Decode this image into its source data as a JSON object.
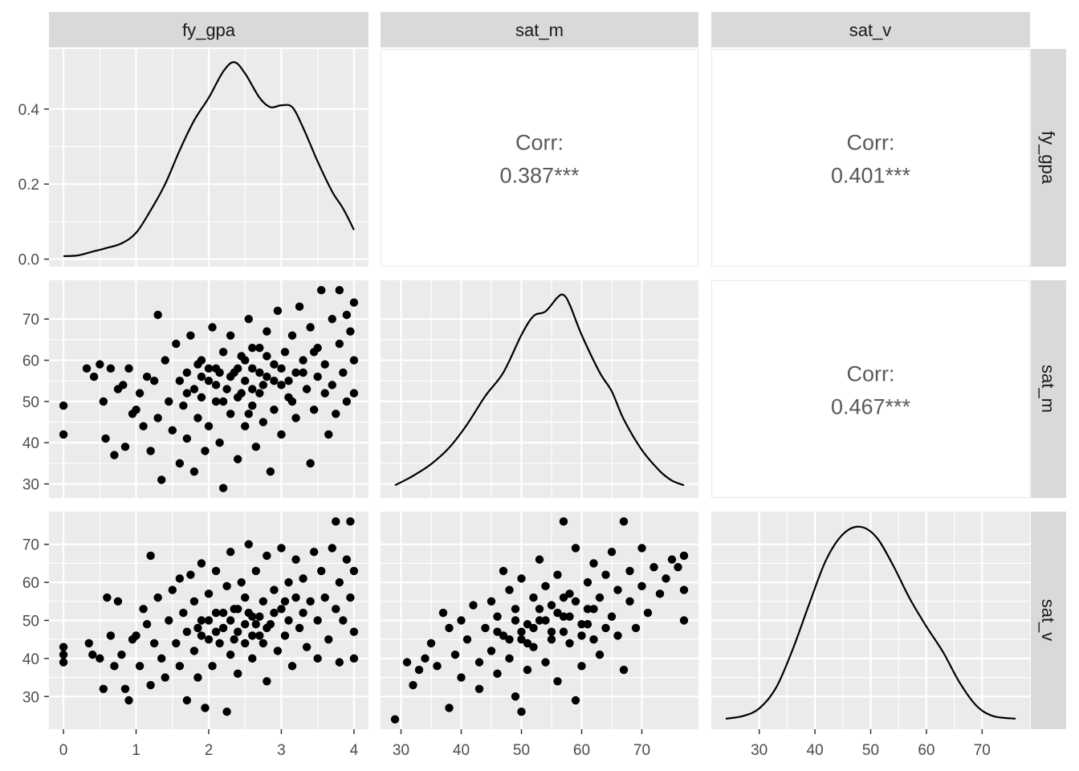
{
  "colors": {
    "panel_bg": "#ebebeb",
    "grid_major": "#ffffff",
    "strip_bg": "#d9d9d9",
    "strip_text": "#1a1a1a",
    "axis_text": "#4d4d4d",
    "corr_text": "#595959",
    "ink": "#000000"
  },
  "chart_data": {
    "type": "scatter",
    "variables": [
      "fy_gpa",
      "sat_m",
      "sat_v"
    ],
    "column_strips": [
      "fy_gpa",
      "sat_m",
      "sat_v"
    ],
    "row_strips": [
      "fy_gpa",
      "sat_m",
      "sat_v"
    ],
    "axes": {
      "fy_gpa": {
        "range": [
          -0.2,
          4.2
        ],
        "ticks": [
          0,
          1,
          2,
          3,
          4
        ],
        "labels": [
          "0",
          "1",
          "2",
          "3",
          "4"
        ]
      },
      "sat_m": {
        "range": [
          26.6,
          79.4
        ],
        "ticks": [
          30,
          40,
          50,
          60,
          70
        ],
        "labels": [
          "30",
          "40",
          "50",
          "60",
          "70"
        ]
      },
      "sat_v": {
        "range": [
          21.4,
          78.6
        ],
        "ticks": [
          30,
          40,
          50,
          60,
          70
        ],
        "labels": [
          "30",
          "40",
          "50",
          "60",
          "70"
        ]
      }
    },
    "density_axis": {
      "range": [
        -0.02,
        0.56
      ],
      "ticks": [
        0.0,
        0.2,
        0.4
      ],
      "labels": [
        "0.0",
        "0.2",
        "0.4"
      ]
    },
    "correlations": [
      {
        "row": "fy_gpa",
        "col": "sat_m",
        "label": "Corr:",
        "value": "0.387***"
      },
      {
        "row": "fy_gpa",
        "col": "sat_v",
        "label": "Corr:",
        "value": "0.401***"
      },
      {
        "row": "sat_m",
        "col": "sat_v",
        "label": "Corr:",
        "value": "0.467***"
      }
    ],
    "densities": {
      "fy_gpa": [
        [
          0.0,
          0.008
        ],
        [
          0.2,
          0.01
        ],
        [
          0.4,
          0.02
        ],
        [
          0.6,
          0.03
        ],
        [
          0.8,
          0.042
        ],
        [
          1.0,
          0.07
        ],
        [
          1.2,
          0.13
        ],
        [
          1.4,
          0.2
        ],
        [
          1.6,
          0.29
        ],
        [
          1.8,
          0.37
        ],
        [
          2.0,
          0.43
        ],
        [
          2.2,
          0.5
        ],
        [
          2.35,
          0.525
        ],
        [
          2.5,
          0.495
        ],
        [
          2.7,
          0.43
        ],
        [
          2.85,
          0.405
        ],
        [
          3.0,
          0.41
        ],
        [
          3.15,
          0.405
        ],
        [
          3.3,
          0.35
        ],
        [
          3.5,
          0.26
        ],
        [
          3.7,
          0.18
        ],
        [
          3.85,
          0.135
        ],
        [
          4.0,
          0.078
        ]
      ],
      "sat_m": [
        [
          29,
          0.002
        ],
        [
          32,
          0.006
        ],
        [
          35,
          0.011
        ],
        [
          38,
          0.018
        ],
        [
          41,
          0.028
        ],
        [
          44,
          0.04
        ],
        [
          47,
          0.05
        ],
        [
          50,
          0.066
        ],
        [
          52,
          0.074
        ],
        [
          54,
          0.076
        ],
        [
          56,
          0.082
        ],
        [
          57,
          0.083
        ],
        [
          58,
          0.079
        ],
        [
          60,
          0.066
        ],
        [
          63,
          0.05
        ],
        [
          65,
          0.042
        ],
        [
          67,
          0.03
        ],
        [
          70,
          0.017
        ],
        [
          73,
          0.008
        ],
        [
          75,
          0.004
        ],
        [
          77,
          0.002
        ]
      ],
      "sat_v": [
        [
          24,
          0.001
        ],
        [
          27,
          0.002
        ],
        [
          30,
          0.005
        ],
        [
          33,
          0.013
        ],
        [
          36,
          0.028
        ],
        [
          39,
          0.046
        ],
        [
          42,
          0.063
        ],
        [
          45,
          0.073
        ],
        [
          48,
          0.076
        ],
        [
          51,
          0.072
        ],
        [
          54,
          0.061
        ],
        [
          57,
          0.048
        ],
        [
          60,
          0.037
        ],
        [
          63,
          0.027
        ],
        [
          66,
          0.015
        ],
        [
          69,
          0.006
        ],
        [
          72,
          0.002
        ],
        [
          76,
          0.001
        ]
      ]
    },
    "density_ymax": {
      "sat_m": 0.085,
      "sat_v": 0.078
    },
    "scatter_fy_gpa_vs_sat_m": [
      [
        0.0,
        49
      ],
      [
        0.0,
        42
      ],
      [
        0.32,
        58
      ],
      [
        0.42,
        56
      ],
      [
        0.5,
        59
      ],
      [
        0.55,
        50
      ],
      [
        0.58,
        41
      ],
      [
        0.65,
        58
      ],
      [
        0.7,
        37
      ],
      [
        0.75,
        53
      ],
      [
        0.82,
        54
      ],
      [
        0.85,
        39
      ],
      [
        0.9,
        58
      ],
      [
        0.95,
        47
      ],
      [
        1.0,
        48
      ],
      [
        1.05,
        52
      ],
      [
        1.1,
        44
      ],
      [
        1.15,
        56
      ],
      [
        1.2,
        38
      ],
      [
        1.25,
        55
      ],
      [
        1.3,
        46
      ],
      [
        1.3,
        71
      ],
      [
        1.35,
        31
      ],
      [
        1.4,
        60
      ],
      [
        1.45,
        50
      ],
      [
        1.5,
        43
      ],
      [
        1.55,
        64
      ],
      [
        1.6,
        35
      ],
      [
        1.6,
        55
      ],
      [
        1.65,
        49
      ],
      [
        1.7,
        57
      ],
      [
        1.7,
        41
      ],
      [
        1.75,
        66
      ],
      [
        1.8,
        53
      ],
      [
        1.8,
        33
      ],
      [
        1.85,
        46
      ],
      [
        1.9,
        60
      ],
      [
        1.9,
        51
      ],
      [
        1.95,
        38
      ],
      [
        2.0,
        55
      ],
      [
        2.0,
        44
      ],
      [
        2.05,
        68
      ],
      [
        2.1,
        50
      ],
      [
        2.1,
        58
      ],
      [
        2.15,
        40
      ],
      [
        2.2,
        62
      ],
      [
        2.2,
        29
      ],
      [
        2.25,
        53
      ],
      [
        2.3,
        47
      ],
      [
        2.3,
        66
      ],
      [
        2.35,
        57
      ],
      [
        2.4,
        36
      ],
      [
        2.4,
        51
      ],
      [
        2.45,
        61
      ],
      [
        2.5,
        44
      ],
      [
        2.5,
        55
      ],
      [
        2.55,
        70
      ],
      [
        2.6,
        49
      ],
      [
        2.6,
        58
      ],
      [
        2.65,
        39
      ],
      [
        2.7,
        63
      ],
      [
        2.7,
        52
      ],
      [
        2.75,
        45
      ],
      [
        2.8,
        67
      ],
      [
        2.8,
        56
      ],
      [
        2.85,
        33
      ],
      [
        2.9,
        59
      ],
      [
        2.9,
        48
      ],
      [
        2.95,
        72
      ],
      [
        3.0,
        54
      ],
      [
        3.0,
        42
      ],
      [
        3.05,
        62
      ],
      [
        3.1,
        51
      ],
      [
        3.15,
        66
      ],
      [
        3.2,
        57
      ],
      [
        3.2,
        46
      ],
      [
        3.25,
        73
      ],
      [
        3.3,
        60
      ],
      [
        3.35,
        53
      ],
      [
        3.4,
        35
      ],
      [
        3.4,
        68
      ],
      [
        3.45,
        48
      ],
      [
        3.5,
        63
      ],
      [
        3.5,
        56
      ],
      [
        3.55,
        77
      ],
      [
        3.6,
        59
      ],
      [
        3.65,
        42
      ],
      [
        3.7,
        70
      ],
      [
        3.7,
        54
      ],
      [
        3.75,
        47
      ],
      [
        3.8,
        77
      ],
      [
        3.8,
        64
      ],
      [
        3.85,
        57
      ],
      [
        3.9,
        71
      ],
      [
        3.9,
        50
      ],
      [
        3.95,
        67
      ],
      [
        4.0,
        74
      ],
      [
        4.0,
        60
      ],
      [
        4.0,
        52
      ],
      [
        2.3,
        56
      ],
      [
        2.5,
        60
      ],
      [
        2.7,
        57
      ],
      [
        2.1,
        54
      ],
      [
        1.9,
        56
      ],
      [
        2.4,
        58
      ],
      [
        2.6,
        53
      ],
      [
        2.8,
        61
      ],
      [
        3.0,
        58
      ],
      [
        2.2,
        50
      ],
      [
        2.0,
        58
      ],
      [
        2.6,
        63
      ],
      [
        3.1,
        55
      ],
      [
        1.7,
        52
      ],
      [
        2.9,
        55
      ],
      [
        3.3,
        57
      ],
      [
        2.45,
        52
      ],
      [
        2.75,
        54
      ],
      [
        2.15,
        57
      ],
      [
        3.6,
        52
      ],
      [
        3.45,
        62
      ],
      [
        1.85,
        59
      ],
      [
        2.55,
        47
      ],
      [
        3.15,
        50
      ]
    ],
    "scatter_fy_gpa_vs_sat_v": [
      [
        0.0,
        43
      ],
      [
        0.0,
        41
      ],
      [
        0.0,
        39
      ],
      [
        0.35,
        44
      ],
      [
        0.4,
        41
      ],
      [
        0.5,
        40
      ],
      [
        0.55,
        32
      ],
      [
        0.6,
        56
      ],
      [
        0.65,
        46
      ],
      [
        0.7,
        38
      ],
      [
        0.75,
        55
      ],
      [
        0.8,
        41
      ],
      [
        0.85,
        32
      ],
      [
        0.9,
        29
      ],
      [
        0.95,
        45
      ],
      [
        1.0,
        46
      ],
      [
        1.05,
        38
      ],
      [
        1.1,
        53
      ],
      [
        1.15,
        49
      ],
      [
        1.2,
        33
      ],
      [
        1.2,
        67
      ],
      [
        1.25,
        44
      ],
      [
        1.3,
        56
      ],
      [
        1.35,
        40
      ],
      [
        1.4,
        35
      ],
      [
        1.45,
        50
      ],
      [
        1.5,
        58
      ],
      [
        1.55,
        44
      ],
      [
        1.6,
        38
      ],
      [
        1.6,
        61
      ],
      [
        1.65,
        52
      ],
      [
        1.7,
        29
      ],
      [
        1.7,
        47
      ],
      [
        1.75,
        62
      ],
      [
        1.8,
        42
      ],
      [
        1.8,
        55
      ],
      [
        1.85,
        35
      ],
      [
        1.9,
        50
      ],
      [
        1.9,
        65
      ],
      [
        1.95,
        27
      ],
      [
        2.0,
        45
      ],
      [
        2.0,
        57
      ],
      [
        2.05,
        38
      ],
      [
        2.1,
        52
      ],
      [
        2.1,
        63
      ],
      [
        2.15,
        44
      ],
      [
        2.2,
        48
      ],
      [
        2.25,
        26
      ],
      [
        2.25,
        59
      ],
      [
        2.3,
        41
      ],
      [
        2.3,
        68
      ],
      [
        2.35,
        53
      ],
      [
        2.4,
        36
      ],
      [
        2.4,
        47
      ],
      [
        2.45,
        60
      ],
      [
        2.5,
        44
      ],
      [
        2.5,
        56
      ],
      [
        2.55,
        70
      ],
      [
        2.6,
        40
      ],
      [
        2.6,
        51
      ],
      [
        2.65,
        63
      ],
      [
        2.7,
        46
      ],
      [
        2.75,
        55
      ],
      [
        2.8,
        34
      ],
      [
        2.8,
        67
      ],
      [
        2.85,
        49
      ],
      [
        2.9,
        58
      ],
      [
        2.95,
        42
      ],
      [
        3.0,
        53
      ],
      [
        3.0,
        69
      ],
      [
        3.05,
        46
      ],
      [
        3.1,
        60
      ],
      [
        3.15,
        38
      ],
      [
        3.2,
        56
      ],
      [
        3.2,
        66
      ],
      [
        3.25,
        48
      ],
      [
        3.3,
        61
      ],
      [
        3.35,
        43
      ],
      [
        3.4,
        55
      ],
      [
        3.45,
        68
      ],
      [
        3.5,
        50
      ],
      [
        3.5,
        40
      ],
      [
        3.55,
        63
      ],
      [
        3.6,
        56
      ],
      [
        3.65,
        45
      ],
      [
        3.7,
        69
      ],
      [
        3.75,
        53
      ],
      [
        3.75,
        76
      ],
      [
        3.8,
        39
      ],
      [
        3.8,
        60
      ],
      [
        3.85,
        50
      ],
      [
        3.9,
        66
      ],
      [
        3.95,
        76
      ],
      [
        3.95,
        56
      ],
      [
        4.0,
        40
      ],
      [
        4.0,
        63
      ],
      [
        4.0,
        47
      ],
      [
        2.3,
        50
      ],
      [
        2.5,
        49
      ],
      [
        2.1,
        47
      ],
      [
        2.7,
        51
      ],
      [
        1.9,
        46
      ],
      [
        2.9,
        52
      ],
      [
        2.4,
        53
      ],
      [
        2.6,
        46
      ],
      [
        2.2,
        52
      ],
      [
        3.1,
        50
      ],
      [
        2.8,
        48
      ],
      [
        2.0,
        50
      ],
      [
        3.3,
        52
      ],
      [
        2.35,
        45
      ],
      [
        2.55,
        52
      ],
      [
        2.75,
        44
      ],
      [
        1.85,
        48
      ],
      [
        3.05,
        55
      ],
      [
        2.65,
        49
      ]
    ],
    "scatter_sat_m_vs_sat_v": [
      [
        29,
        24
      ],
      [
        31,
        39
      ],
      [
        32,
        33
      ],
      [
        33,
        37
      ],
      [
        34,
        40
      ],
      [
        35,
        44
      ],
      [
        36,
        38
      ],
      [
        37,
        52
      ],
      [
        38,
        27
      ],
      [
        38,
        48
      ],
      [
        39,
        41
      ],
      [
        40,
        35
      ],
      [
        40,
        50
      ],
      [
        41,
        45
      ],
      [
        42,
        54
      ],
      [
        43,
        39
      ],
      [
        43,
        32
      ],
      [
        44,
        48
      ],
      [
        45,
        42
      ],
      [
        45,
        55
      ],
      [
        46,
        36
      ],
      [
        46,
        51
      ],
      [
        47,
        63
      ],
      [
        47,
        46
      ],
      [
        48,
        40
      ],
      [
        48,
        58
      ],
      [
        49,
        30
      ],
      [
        49,
        53
      ],
      [
        50,
        26
      ],
      [
        50,
        45
      ],
      [
        50,
        61
      ],
      [
        51,
        49
      ],
      [
        51,
        37
      ],
      [
        52,
        56
      ],
      [
        52,
        43
      ],
      [
        53,
        66
      ],
      [
        53,
        50
      ],
      [
        54,
        39
      ],
      [
        54,
        59
      ],
      [
        55,
        47
      ],
      [
        55,
        54
      ],
      [
        56,
        34
      ],
      [
        56,
        62
      ],
      [
        57,
        76
      ],
      [
        57,
        51
      ],
      [
        58,
        44
      ],
      [
        58,
        57
      ],
      [
        59,
        69
      ],
      [
        59,
        29
      ],
      [
        60,
        49
      ],
      [
        60,
        38
      ],
      [
        61,
        60
      ],
      [
        61,
        53
      ],
      [
        62,
        65
      ],
      [
        62,
        45
      ],
      [
        63,
        56
      ],
      [
        63,
        41
      ],
      [
        64,
        62
      ],
      [
        65,
        51
      ],
      [
        65,
        68
      ],
      [
        66,
        46
      ],
      [
        66,
        58
      ],
      [
        67,
        37
      ],
      [
        67,
        76
      ],
      [
        68,
        55
      ],
      [
        68,
        63
      ],
      [
        69,
        48
      ],
      [
        70,
        69
      ],
      [
        70,
        59
      ],
      [
        71,
        52
      ],
      [
        72,
        64
      ],
      [
        73,
        57
      ],
      [
        74,
        61
      ],
      [
        75,
        66
      ],
      [
        76,
        64
      ],
      [
        77,
        67
      ],
      [
        77,
        58
      ],
      [
        77,
        50
      ],
      [
        52,
        48
      ],
      [
        54,
        50
      ],
      [
        56,
        52
      ],
      [
        55,
        45
      ],
      [
        57,
        47
      ],
      [
        53,
        53
      ],
      [
        58,
        51
      ],
      [
        50,
        47
      ],
      [
        59,
        55
      ],
      [
        60,
        46
      ],
      [
        49,
        50
      ],
      [
        61,
        49
      ],
      [
        62,
        53
      ],
      [
        51,
        44
      ],
      [
        48,
        45
      ],
      [
        57,
        56
      ],
      [
        64,
        48
      ],
      [
        46,
        47
      ]
    ]
  }
}
